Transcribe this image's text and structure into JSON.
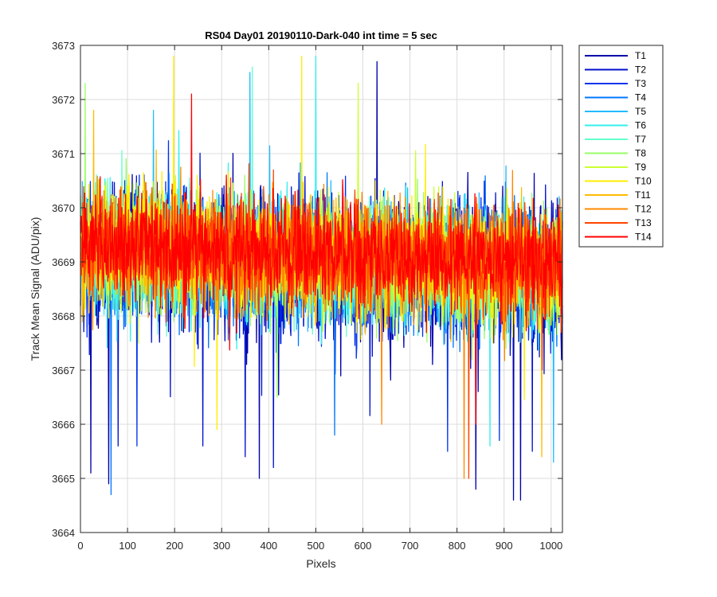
{
  "chart_data": {
    "type": "line",
    "title": "RS04 Day01 20190110-Dark-040 int time = 5 sec",
    "xlabel": "Pixels",
    "ylabel": "Track Mean Signal (ADU/pix)",
    "xlim": [
      0,
      1024
    ],
    "ylim": [
      3664,
      3673
    ],
    "xticks": [
      0,
      100,
      200,
      300,
      400,
      500,
      600,
      700,
      800,
      900,
      1000
    ],
    "yticks": [
      3664,
      3665,
      3666,
      3667,
      3668,
      3669,
      3670,
      3671,
      3672,
      3673
    ],
    "grid": true,
    "legend_position": "outside-top-right",
    "series": [
      {
        "name": "T1",
        "color": "#0000aa",
        "center": 3668.9,
        "amplitude": 1.2,
        "extremes": [
          [
            22,
            3665.1
          ],
          [
            60,
            3664.9
          ],
          [
            380,
            3665.0
          ],
          [
            630,
            3672.7
          ],
          [
            840,
            3664.8
          ],
          [
            920,
            3664.6
          ],
          [
            935,
            3664.6
          ]
        ]
      },
      {
        "name": "T2",
        "color": "#0011cc",
        "center": 3668.9,
        "amplitude": 1.15,
        "extremes": [
          [
            80,
            3665.6
          ],
          [
            260,
            3665.6
          ],
          [
            350,
            3665.4
          ],
          [
            410,
            3665.2
          ],
          [
            960,
            3665.5
          ]
        ]
      },
      {
        "name": "T3",
        "color": "#0033ee",
        "center": 3668.95,
        "amplitude": 1.1,
        "extremes": [
          [
            120,
            3665.6
          ],
          [
            780,
            3665.5
          ],
          [
            890,
            3665.7
          ]
        ]
      },
      {
        "name": "T4",
        "color": "#0077ff",
        "center": 3668.95,
        "amplitude": 1.05,
        "extremes": [
          [
            65,
            3664.7
          ],
          [
            540,
            3665.8
          ]
        ]
      },
      {
        "name": "T5",
        "color": "#22bbff",
        "center": 3669.0,
        "amplitude": 1.0,
        "extremes": [
          [
            155,
            3671.8
          ],
          [
            360,
            3672.5
          ],
          [
            1005,
            3665.3
          ]
        ]
      },
      {
        "name": "T6",
        "color": "#33eeee",
        "center": 3669.0,
        "amplitude": 1.0,
        "extremes": [
          [
            500,
            3672.8
          ],
          [
            870,
            3665.6
          ]
        ]
      },
      {
        "name": "T7",
        "color": "#66ffcc",
        "center": 3669.05,
        "amplitude": 0.95,
        "extremes": [
          [
            365,
            3672.6
          ]
        ]
      },
      {
        "name": "T8",
        "color": "#99ff66",
        "center": 3669.05,
        "amplitude": 0.95,
        "extremes": [
          [
            10,
            3672.3
          ]
        ]
      },
      {
        "name": "T9",
        "color": "#ccff33",
        "center": 3669.1,
        "amplitude": 0.95,
        "extremes": [
          [
            590,
            3672.3
          ]
        ]
      },
      {
        "name": "T10",
        "color": "#ffee00",
        "center": 3669.1,
        "amplitude": 0.95,
        "extremes": [
          [
            198,
            3672.8
          ],
          [
            470,
            3672.8
          ],
          [
            290,
            3665.9
          ]
        ]
      },
      {
        "name": "T11",
        "color": "#ffbb00",
        "center": 3669.1,
        "amplitude": 0.9,
        "extremes": [
          [
            28,
            3671.8
          ],
          [
            980,
            3665.4
          ]
        ]
      },
      {
        "name": "T12",
        "color": "#ff8800",
        "center": 3669.1,
        "amplitude": 0.9,
        "extremes": [
          [
            640,
            3666.0
          ],
          [
            815,
            3665.0
          ]
        ]
      },
      {
        "name": "T13",
        "color": "#ff4400",
        "center": 3669.15,
        "amplitude": 0.85,
        "extremes": [
          [
            825,
            3665.0
          ]
        ]
      },
      {
        "name": "T14",
        "color": "#ff0000",
        "center": 3669.2,
        "amplitude": 0.85,
        "extremes": [
          [
            236,
            3672.1
          ],
          [
            840,
            3666.0
          ]
        ]
      }
    ]
  }
}
